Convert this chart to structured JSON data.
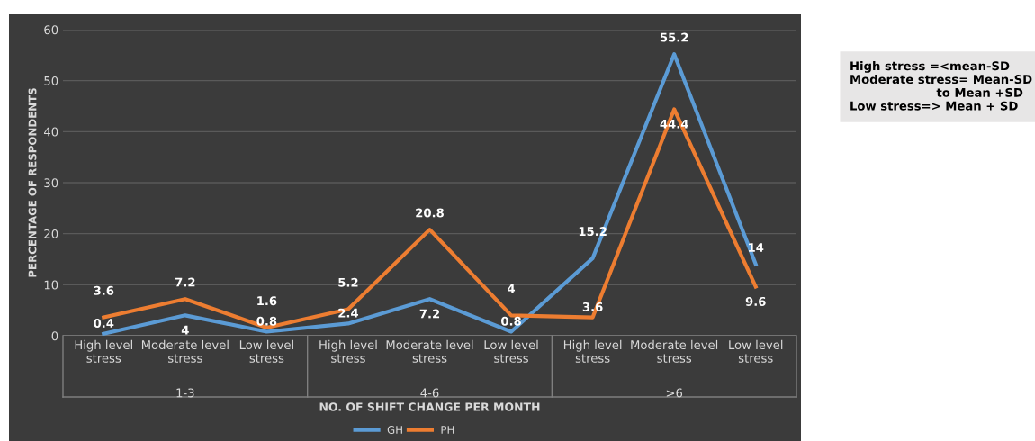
{
  "chart_data": {
    "type": "line",
    "xlabel": "NO. OF SHIFT CHANGE PER MONTH",
    "ylabel": "PERCENTAGE OF RESPONDENTS",
    "categories": [
      "High level stress",
      "Moderate level stress",
      "Low level stress",
      "High level stress",
      "Moderate level stress",
      "Low level stress",
      "High level stress",
      "Moderate level stress",
      "Low level stress"
    ],
    "series": [
      {
        "name": "GH",
        "color": "#5b9bd5",
        "values": [
          0.4,
          4,
          0.8,
          2.4,
          7.2,
          0.8,
          15.2,
          55.2,
          14
        ]
      },
      {
        "name": "PH",
        "color": "#ed7d31",
        "values": [
          3.6,
          7.2,
          1.6,
          5.2,
          20.8,
          4,
          3.6,
          44.4,
          9.6
        ]
      }
    ],
    "ylim": [
      0,
      60
    ],
    "yticks": [
      0,
      10,
      20,
      30,
      40,
      50,
      60
    ],
    "grid": "y",
    "legend": "bottom",
    "data_labels": true,
    "marker": "none",
    "line_style": "solid",
    "annotations": [
      "1-3",
      "4-6",
      ">6",
      "High stress =<mean-SD\nModerate stress= Mean-SD\n                     to Mean +SD\nLow stress=> Mean + SD"
    ]
  }
}
